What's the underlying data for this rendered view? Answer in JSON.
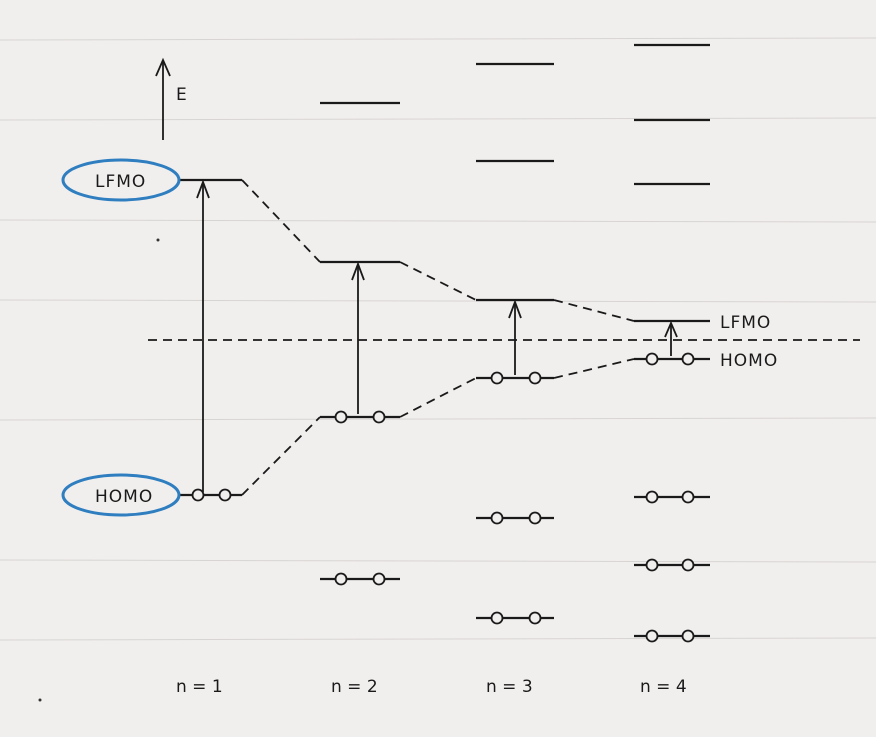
{
  "energy_axis_label": "E",
  "labels": {
    "lfmo_left": "LFMO",
    "homo_left": "HOMO",
    "lfmo_right": "LFMO",
    "homo_right": "HOMO"
  },
  "columns": [
    "n = 1",
    "n = 2",
    "n = 3",
    "n = 4"
  ],
  "highlight_color": "#2f7ec0"
}
